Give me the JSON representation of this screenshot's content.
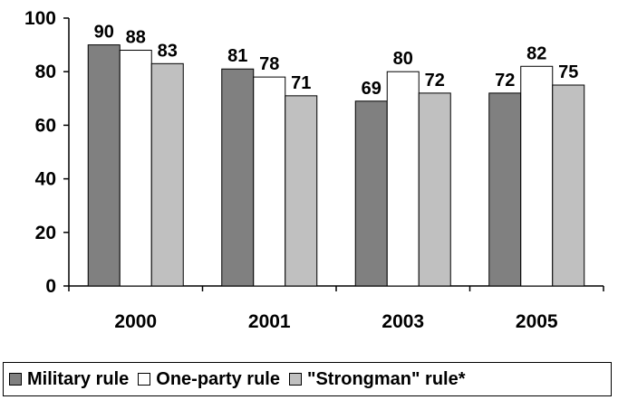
{
  "chart_data": {
    "type": "bar",
    "title": "",
    "xlabel": "",
    "ylabel": "",
    "categories": [
      "2000",
      "2001",
      "2003",
      "2005"
    ],
    "series": [
      {
        "name": "Military rule",
        "values": [
          90,
          81,
          69,
          72
        ],
        "color": "#808080"
      },
      {
        "name": "One-party rule",
        "values": [
          88,
          78,
          80,
          82
        ],
        "color": "#ffffff"
      },
      {
        "name": "\"Strongman\" rule*",
        "values": [
          83,
          71,
          72,
          75
        ],
        "color": "#c0c0c0"
      }
    ],
    "ylim": [
      0,
      100
    ],
    "yticks": [
      "0",
      "20",
      "40",
      "60",
      "80",
      "100"
    ],
    "grid": false,
    "legend_position": "bottom"
  }
}
